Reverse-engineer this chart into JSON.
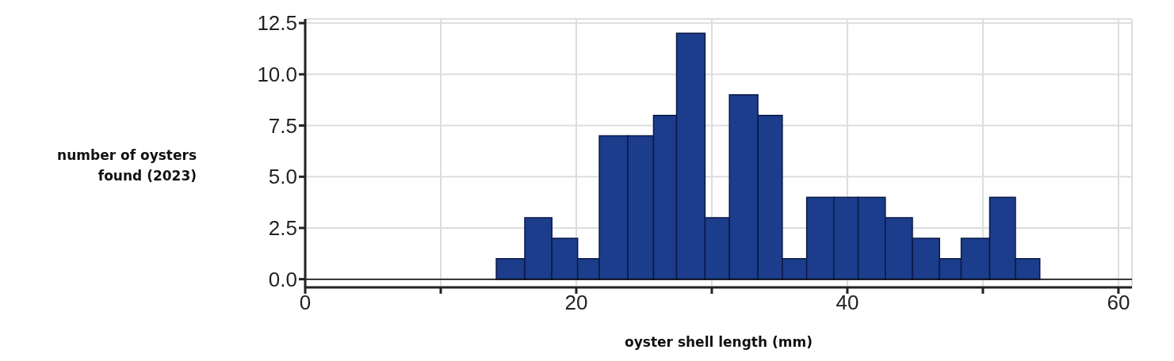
{
  "chart_data": {
    "type": "histogram",
    "xlabel": "oyster shell length (mm)",
    "ylabel": "number of oysters found (2023)",
    "bins": [
      14.1,
      16.2,
      18.2,
      20.1,
      21.7,
      23.8,
      25.7,
      27.4,
      29.5,
      31.3,
      33.4,
      35.2,
      37.0,
      39.0,
      40.8,
      42.8,
      44.8,
      46.8,
      48.4,
      50.5,
      52.4,
      54.2
    ],
    "values": [
      1,
      3,
      2,
      1,
      7,
      7,
      8,
      12,
      3,
      9,
      8,
      1,
      4,
      4,
      4,
      3,
      2,
      1,
      2,
      4,
      1
    ],
    "color": "#1c3c8c",
    "xlim": [
      0,
      61
    ],
    "xticks": [
      0,
      {
        "value": 10,
        "label": null
      },
      20,
      {
        "value": 30,
        "label": null
      },
      40,
      {
        "value": 50,
        "label": null
      },
      60
    ],
    "ylim": [
      -0.4,
      12.7
    ],
    "yticks": [
      {
        "value": 0,
        "label": "0.0"
      },
      2.5,
      {
        "value": 5,
        "label": "5.0"
      },
      7.5,
      {
        "value": 10,
        "label": "10.0"
      },
      12.5
    ],
    "ref_lines": [
      {
        "axis": "y",
        "value": 0,
        "color": "#000000"
      }
    ],
    "grid": true
  }
}
